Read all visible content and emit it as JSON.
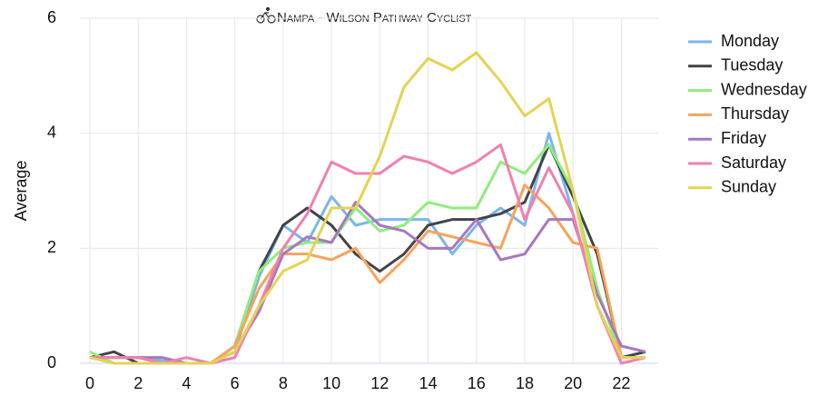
{
  "chart_data": {
    "type": "line",
    "title": "Nampa - Wilson Pathway Cyclist",
    "ylabel": "Average",
    "x": [
      0,
      1,
      2,
      3,
      4,
      5,
      6,
      7,
      8,
      9,
      10,
      11,
      12,
      13,
      14,
      15,
      16,
      17,
      18,
      19,
      20,
      21,
      22,
      23
    ],
    "xlim": [
      0,
      23
    ],
    "xticks": [
      0,
      2,
      4,
      6,
      8,
      10,
      12,
      14,
      16,
      18,
      20,
      22
    ],
    "ylim": [
      0,
      6
    ],
    "yticks": [
      0,
      2,
      4,
      6
    ],
    "grid": true,
    "legend": "right",
    "series": [
      {
        "name": "Monday",
        "color": "#7cb5ec",
        "values": [
          0.1,
          0.1,
          0.1,
          0.05,
          0,
          0,
          0.2,
          1.5,
          2.4,
          2.1,
          2.9,
          2.4,
          2.5,
          2.5,
          2.5,
          1.9,
          2.4,
          2.7,
          2.4,
          4.0,
          2.6,
          1.0,
          0.1,
          0.2
        ]
      },
      {
        "name": "Tuesday",
        "color": "#434348",
        "values": [
          0.1,
          0.2,
          0,
          0,
          0,
          0,
          0.3,
          1.6,
          2.4,
          2.7,
          2.4,
          1.9,
          1.6,
          1.9,
          2.4,
          2.5,
          2.5,
          2.6,
          2.8,
          3.8,
          2.9,
          1.9,
          0.1,
          0.2
        ]
      },
      {
        "name": "Wednesday",
        "color": "#90ed7d",
        "values": [
          0.2,
          0,
          0,
          0,
          0,
          0,
          0.3,
          1.6,
          2.0,
          2.1,
          2.1,
          2.7,
          2.3,
          2.4,
          2.8,
          2.7,
          2.7,
          3.5,
          3.3,
          3.8,
          3.0,
          1.3,
          0.1,
          0.1
        ]
      },
      {
        "name": "Thursday",
        "color": "#f7a35c",
        "values": [
          0.1,
          0.1,
          0.1,
          0,
          0,
          0,
          0.3,
          1.3,
          1.9,
          1.9,
          1.8,
          2.0,
          1.4,
          1.8,
          2.3,
          2.2,
          2.1,
          2.0,
          3.1,
          2.7,
          2.1,
          2.0,
          0.1,
          0.1
        ]
      },
      {
        "name": "Friday",
        "color": "#a877c0",
        "values": [
          0.1,
          0.1,
          0.1,
          0.1,
          0,
          0,
          0.2,
          0.9,
          1.9,
          2.2,
          2.1,
          2.8,
          2.4,
          2.3,
          2.0,
          2.0,
          2.5,
          1.8,
          1.9,
          2.5,
          2.5,
          1.2,
          0.3,
          0.2
        ]
      },
      {
        "name": "Saturday",
        "color": "#f080b0",
        "values": [
          0.1,
          0.1,
          0.1,
          0,
          0.1,
          0,
          0.1,
          1.0,
          2.0,
          2.6,
          3.5,
          3.3,
          3.3,
          3.6,
          3.5,
          3.3,
          3.5,
          3.8,
          2.5,
          3.4,
          2.6,
          1.0,
          0,
          0.1
        ]
      },
      {
        "name": "Sunday",
        "color": "#e4d354",
        "values": [
          0.1,
          0,
          0,
          0,
          0,
          0,
          0.2,
          1.0,
          1.6,
          1.8,
          2.7,
          2.7,
          3.6,
          4.8,
          5.3,
          5.1,
          5.4,
          4.9,
          4.3,
          4.6,
          3.0,
          1.0,
          0.1,
          0.1
        ]
      }
    ]
  }
}
